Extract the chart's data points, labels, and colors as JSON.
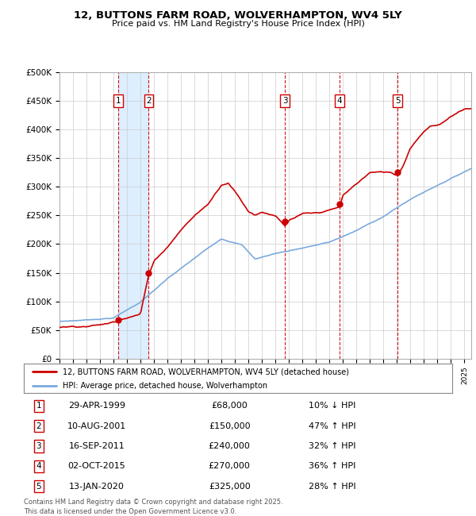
{
  "title": "12, BUTTONS FARM ROAD, WOLVERHAMPTON, WV4 5LY",
  "subtitle": "Price paid vs. HM Land Registry's House Price Index (HPI)",
  "yticks": [
    0,
    50000,
    100000,
    150000,
    200000,
    250000,
    300000,
    350000,
    400000,
    450000,
    500000
  ],
  "ytick_labels": [
    "£0",
    "£50K",
    "£100K",
    "£150K",
    "£200K",
    "£250K",
    "£300K",
    "£350K",
    "£400K",
    "£450K",
    "£500K"
  ],
  "xmin": 1995.0,
  "xmax": 2025.5,
  "ymin": 0,
  "ymax": 500000,
  "sales": [
    {
      "num": 1,
      "year": 1999.33,
      "price": 68000,
      "label": "1",
      "pct": "10%",
      "dir": "↓",
      "date": "29-APR-1999"
    },
    {
      "num": 2,
      "year": 2001.61,
      "price": 150000,
      "label": "2",
      "pct": "47%",
      "dir": "↑",
      "date": "10-AUG-2001"
    },
    {
      "num": 3,
      "year": 2011.71,
      "price": 240000,
      "label": "3",
      "pct": "32%",
      "dir": "↑",
      "date": "16-SEP-2011"
    },
    {
      "num": 4,
      "year": 2015.75,
      "price": 270000,
      "label": "4",
      "pct": "36%",
      "dir": "↑",
      "date": "02-OCT-2015"
    },
    {
      "num": 5,
      "year": 2020.04,
      "price": 325000,
      "label": "5",
      "pct": "28%",
      "dir": "↑",
      "date": "13-JAN-2020"
    }
  ],
  "sale_line_color": "#cc0000",
  "sale_box_color": "#cc0000",
  "hpi_line_color": "#7aaadd",
  "shade_color": "#ddeeff",
  "background_color": "#ffffff",
  "grid_color": "#cccccc",
  "legend_label_red": "12, BUTTONS FARM ROAD, WOLVERHAMPTON, WV4 5LY (detached house)",
  "legend_label_blue": "HPI: Average price, detached house, Wolverhampton",
  "footer": "Contains HM Land Registry data © Crown copyright and database right 2025.\nThis data is licensed under the Open Government Licence v3.0.",
  "table_rows": [
    [
      "1",
      "29-APR-1999",
      "£68,000",
      "10% ↓ HPI"
    ],
    [
      "2",
      "10-AUG-2001",
      "£150,000",
      "47% ↑ HPI"
    ],
    [
      "3",
      "16-SEP-2011",
      "£240,000",
      "32% ↑ HPI"
    ],
    [
      "4",
      "02-OCT-2015",
      "£270,000",
      "36% ↑ HPI"
    ],
    [
      "5",
      "13-JAN-2020",
      "£325,000",
      "28% ↑ HPI"
    ]
  ]
}
